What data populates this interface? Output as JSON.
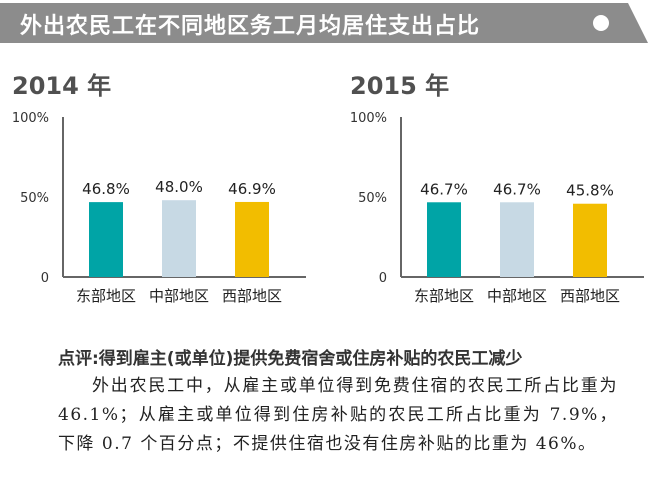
{
  "banner": {
    "title": "外出农民工在不同地区务工月均居住支出占比"
  },
  "colors": {
    "banner": "#8c8c8c",
    "axis": "#666666",
    "east": "#00a4a6",
    "central": "#c7d9e4",
    "west": "#f2bd00"
  },
  "chart_data": [
    {
      "type": "bar",
      "title": "2014 年",
      "categories": [
        "东部地区",
        "中部地区",
        "西部地区"
      ],
      "values": [
        46.8,
        48.0,
        46.9
      ],
      "value_labels": [
        "46.8%",
        "48.0%",
        "46.9%"
      ],
      "yticks": [
        "0",
        "50%",
        "100%"
      ],
      "ylim": [
        0,
        100
      ],
      "grid": false
    },
    {
      "type": "bar",
      "title": "2015 年",
      "categories": [
        "东部地区",
        "中部地区",
        "西部地区"
      ],
      "values": [
        46.7,
        46.7,
        45.8
      ],
      "value_labels": [
        "46.7%",
        "46.7%",
        "45.8%"
      ],
      "yticks": [
        "0",
        "50%",
        "100%"
      ],
      "ylim": [
        0,
        100
      ],
      "grid": false
    }
  ],
  "caption": {
    "title": "点评:得到雇主(或单位)提供免费宿舍或住房补贴的农民工减少",
    "body": "外出农民工中，从雇主或单位得到免费住宿的农民工所占比重为 46.1%；从雇主或单位得到住房补贴的农民工所占比重为 7.9%，下降 0.7 个百分点；不提供住宿也没有住房补贴的比重为 46%。"
  }
}
